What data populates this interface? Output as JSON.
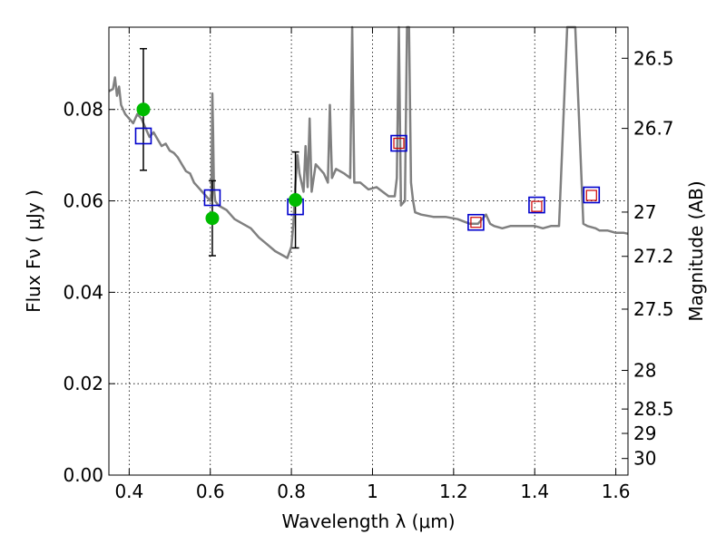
{
  "chart_data": {
    "type": "scatter",
    "xlabel": "Wavelength  λ (μm)",
    "ylabel": "Flux  Fν  ( μJy )",
    "ylabel_right": "Magnitude (AB)",
    "xlim": [
      0.35,
      1.63
    ],
    "ylim": [
      0.0,
      0.098
    ],
    "grid": true,
    "x_ticks": [
      0.4,
      0.6,
      0.8,
      1.0,
      1.2,
      1.4,
      1.6
    ],
    "x_tick_labels": [
      "0.4",
      "0.6",
      "0.8",
      "1",
      "1.2",
      "1.4",
      "1.6"
    ],
    "y_ticks": [
      0.0,
      0.02,
      0.04,
      0.06,
      0.08
    ],
    "y_tick_labels": [
      "0.00",
      "0.02",
      "0.04",
      "0.06",
      "0.08"
    ],
    "right_axis_ticks": [
      "26.5",
      "26.7",
      "27",
      "27.2",
      "27.5",
      "28",
      "28.5",
      "29",
      "30"
    ],
    "colors": {
      "spectrum": "#808080",
      "observed": "#00bb00",
      "model_blue": "#0000cc",
      "model_red": "#cc0000",
      "errorbar": "#000000"
    },
    "series": [
      {
        "kind": "spectrum",
        "x": [
          0.35,
          0.36,
          0.365,
          0.37,
          0.375,
          0.38,
          0.39,
          0.4,
          0.41,
          0.42,
          0.43,
          0.44,
          0.45,
          0.46,
          0.47,
          0.48,
          0.49,
          0.5,
          0.51,
          0.52,
          0.53,
          0.54,
          0.55,
          0.56,
          0.57,
          0.58,
          0.59,
          0.6,
          0.603,
          0.605,
          0.607,
          0.609,
          0.612,
          0.62,
          0.64,
          0.66,
          0.68,
          0.7,
          0.72,
          0.74,
          0.76,
          0.78,
          0.79,
          0.8,
          0.805,
          0.81,
          0.815,
          0.82,
          0.83,
          0.835,
          0.84,
          0.845,
          0.85,
          0.86,
          0.87,
          0.88,
          0.89,
          0.895,
          0.9,
          0.91,
          0.93,
          0.945,
          0.95,
          0.955,
          0.97,
          0.99,
          1.01,
          1.04,
          1.055,
          1.06,
          1.065,
          1.07,
          1.08,
          1.085,
          1.09,
          1.095,
          1.1,
          1.105,
          1.12,
          1.15,
          1.18,
          1.21,
          1.24,
          1.26,
          1.28,
          1.29,
          1.3,
          1.32,
          1.34,
          1.36,
          1.38,
          1.4,
          1.42,
          1.44,
          1.46,
          1.48,
          1.5,
          1.52,
          1.53,
          1.55,
          1.56,
          1.58,
          1.6,
          1.62,
          1.63
        ],
        "y": [
          0.084,
          0.0845,
          0.087,
          0.083,
          0.085,
          0.081,
          0.079,
          0.078,
          0.077,
          0.079,
          0.078,
          0.076,
          0.074,
          0.075,
          0.0735,
          0.072,
          0.0725,
          0.071,
          0.0705,
          0.0695,
          0.068,
          0.0665,
          0.066,
          0.064,
          0.063,
          0.062,
          0.061,
          0.06,
          0.062,
          0.0835,
          0.075,
          0.063,
          0.06,
          0.059,
          0.058,
          0.056,
          0.055,
          0.054,
          0.052,
          0.0505,
          0.049,
          0.048,
          0.0475,
          0.05,
          0.055,
          0.064,
          0.07,
          0.066,
          0.062,
          0.072,
          0.063,
          0.078,
          0.062,
          0.068,
          0.067,
          0.066,
          0.064,
          0.081,
          0.065,
          0.067,
          0.066,
          0.065,
          0.098,
          0.064,
          0.064,
          0.0625,
          0.063,
          0.061,
          0.061,
          0.065,
          0.098,
          0.059,
          0.06,
          0.098,
          0.098,
          0.064,
          0.06,
          0.0575,
          0.057,
          0.0565,
          0.0565,
          0.056,
          0.055,
          0.055,
          0.057,
          0.055,
          0.0545,
          0.054,
          0.0545,
          0.0545,
          0.0545,
          0.0545,
          0.054,
          0.0545,
          0.0545,
          0.098,
          0.098,
          0.055,
          0.0545,
          0.054,
          0.0535,
          0.0535,
          0.053,
          0.053,
          0.0528
        ]
      },
      {
        "kind": "observed",
        "x": [
          0.435,
          0.605,
          0.81
        ],
        "y": [
          0.08,
          0.0562,
          0.0602
        ],
        "yerr": [
          0.0133,
          0.0082,
          0.0105
        ]
      },
      {
        "kind": "model_blue_squares",
        "x": [
          0.435,
          0.605,
          0.81,
          1.065,
          1.255,
          1.405,
          1.54
        ],
        "y": [
          0.0742,
          0.0607,
          0.0587,
          0.0726,
          0.0553,
          0.0591,
          0.0613
        ]
      },
      {
        "kind": "model_red_squares",
        "x": [
          1.065,
          1.255,
          1.405,
          1.54
        ],
        "y": [
          0.0726,
          0.0553,
          0.0588,
          0.0612
        ]
      }
    ]
  }
}
